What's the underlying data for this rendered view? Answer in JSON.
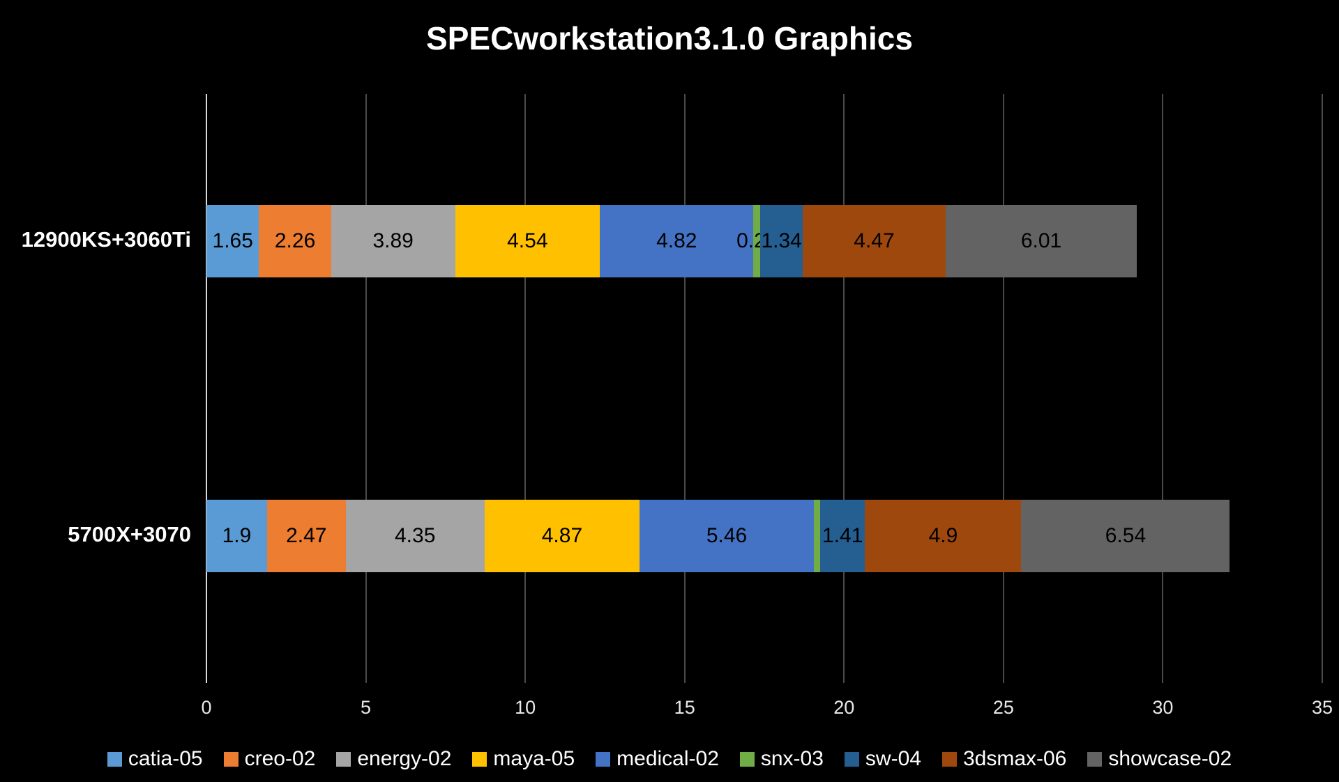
{
  "title": "SPECworkstation3.1.0 Graphics",
  "chart_data": {
    "type": "bar",
    "orientation": "horizontal",
    "stacked": true,
    "title": "SPECworkstation3.1.0 Graphics",
    "categories": [
      "12900KS+3060Ti",
      "5700X+3070"
    ],
    "series": [
      {
        "name": "catia-05",
        "color": "#5B9BD5",
        "values": [
          1.65,
          1.9
        ]
      },
      {
        "name": "creo-02",
        "color": "#ED7D31",
        "values": [
          2.26,
          2.47
        ]
      },
      {
        "name": "energy-02",
        "color": "#A5A5A5",
        "values": [
          3.89,
          4.35
        ]
      },
      {
        "name": "maya-05",
        "color": "#FFC000",
        "values": [
          4.54,
          4.87
        ]
      },
      {
        "name": "medical-02",
        "color": "#4472C4",
        "values": [
          4.82,
          5.46
        ]
      },
      {
        "name": "snx-03",
        "color": "#70AD47",
        "values": [
          0.21,
          0.2
        ]
      },
      {
        "name": "sw-04",
        "color": "#255E91",
        "values": [
          1.34,
          1.41
        ]
      },
      {
        "name": "3dsmax-06",
        "color": "#9E480E",
        "values": [
          4.47,
          4.9
        ]
      },
      {
        "name": "showcase-02",
        "color": "#636363",
        "values": [
          6.01,
          6.54
        ]
      }
    ],
    "value_labels": [
      [
        "1.65",
        "2.26",
        "3.89",
        "4.54",
        "4.82",
        "0.21",
        "1.34",
        "4.47",
        "6.01"
      ],
      [
        "1.9",
        "2.47",
        "4.35",
        "4.87",
        "5.46",
        "",
        "1.41",
        "4.9",
        "6.54"
      ]
    ],
    "xlim": [
      0,
      35
    ],
    "x_ticks": [
      0,
      5,
      10,
      15,
      20,
      25,
      30,
      35
    ],
    "grid": "vertical",
    "legend_position": "bottom",
    "background": "#000000",
    "text_color": "#ffffff"
  }
}
